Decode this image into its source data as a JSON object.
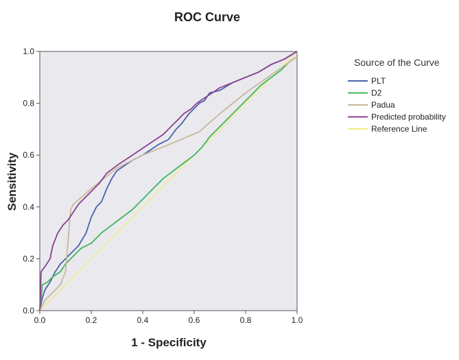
{
  "chart_data": {
    "type": "line",
    "title": "ROC Curve",
    "xlabel": "1 - Specificity",
    "ylabel": "Sensitivity",
    "xlim": [
      0,
      1
    ],
    "ylim": [
      0,
      1
    ],
    "x_ticks": [
      "0.0",
      "0.2",
      "0.4",
      "0.6",
      "0.8",
      "1.0"
    ],
    "y_ticks": [
      "0.0",
      "0.2",
      "0.4",
      "0.6",
      "0.8",
      "1.0"
    ],
    "grid": false,
    "background_color": "#e9e9ee",
    "legend": {
      "title": "Source of the Curve",
      "position": "right"
    },
    "series": [
      {
        "name": "PLT",
        "color": "#4a62a8",
        "x": [
          0,
          0.01,
          0.02,
          0.04,
          0.06,
          0.08,
          0.1,
          0.12,
          0.15,
          0.18,
          0.2,
          0.22,
          0.24,
          0.26,
          0.28,
          0.3,
          0.33,
          0.36,
          0.4,
          0.43,
          0.46,
          0.5,
          0.53,
          0.55,
          0.58,
          0.6,
          0.62,
          0.64,
          0.66,
          0.7,
          0.75,
          0.8,
          0.85,
          0.9,
          0.95,
          1.0
        ],
        "y": [
          0,
          0.05,
          0.08,
          0.11,
          0.15,
          0.18,
          0.2,
          0.22,
          0.25,
          0.3,
          0.36,
          0.4,
          0.42,
          0.47,
          0.51,
          0.54,
          0.56,
          0.58,
          0.6,
          0.62,
          0.64,
          0.66,
          0.7,
          0.72,
          0.76,
          0.78,
          0.8,
          0.81,
          0.84,
          0.85,
          0.88,
          0.9,
          0.92,
          0.95,
          0.97,
          1.0
        ]
      },
      {
        "name": "D2",
        "color": "#3fb65a",
        "x": [
          0,
          0.01,
          0.03,
          0.05,
          0.08,
          0.1,
          0.13,
          0.16,
          0.2,
          0.24,
          0.28,
          0.32,
          0.36,
          0.4,
          0.44,
          0.48,
          0.52,
          0.56,
          0.6,
          0.63,
          0.66,
          0.7,
          0.74,
          0.78,
          0.82,
          0.86,
          0.9,
          0.94,
          0.97,
          1.0
        ],
        "y": [
          0,
          0.1,
          0.11,
          0.13,
          0.15,
          0.18,
          0.21,
          0.24,
          0.26,
          0.3,
          0.33,
          0.36,
          0.39,
          0.43,
          0.47,
          0.51,
          0.54,
          0.57,
          0.6,
          0.63,
          0.67,
          0.71,
          0.75,
          0.79,
          0.83,
          0.87,
          0.9,
          0.93,
          0.96,
          0.98
        ]
      },
      {
        "name": "Padua",
        "color": "#c9b79b",
        "x": [
          0,
          0.02,
          0.05,
          0.08,
          0.1,
          0.12,
          0.13,
          0.2,
          0.3,
          0.4,
          0.5,
          0.62,
          0.7,
          0.8,
          0.9,
          1.0
        ],
        "y": [
          0,
          0.04,
          0.07,
          0.1,
          0.15,
          0.39,
          0.41,
          0.47,
          0.55,
          0.6,
          0.64,
          0.69,
          0.76,
          0.84,
          0.91,
          0.98
        ]
      },
      {
        "name": "Predicted probability",
        "color": "#8a3f8e",
        "x": [
          0,
          0.005,
          0.02,
          0.04,
          0.05,
          0.07,
          0.09,
          0.11,
          0.13,
          0.15,
          0.18,
          0.2,
          0.23,
          0.26,
          0.3,
          0.33,
          0.36,
          0.39,
          0.42,
          0.45,
          0.48,
          0.5,
          0.53,
          0.56,
          0.59,
          0.61,
          0.64,
          0.67,
          0.7,
          0.75,
          0.8,
          0.85,
          0.9,
          0.95,
          1.0
        ],
        "y": [
          0,
          0.15,
          0.17,
          0.2,
          0.25,
          0.3,
          0.33,
          0.35,
          0.38,
          0.41,
          0.44,
          0.46,
          0.49,
          0.53,
          0.56,
          0.58,
          0.6,
          0.62,
          0.64,
          0.66,
          0.68,
          0.7,
          0.73,
          0.76,
          0.78,
          0.8,
          0.82,
          0.84,
          0.86,
          0.88,
          0.9,
          0.92,
          0.95,
          0.97,
          1.0
        ]
      },
      {
        "name": "Reference Line",
        "color": "#f2ea8a",
        "x": [
          0,
          1
        ],
        "y": [
          0,
          1
        ]
      }
    ]
  }
}
